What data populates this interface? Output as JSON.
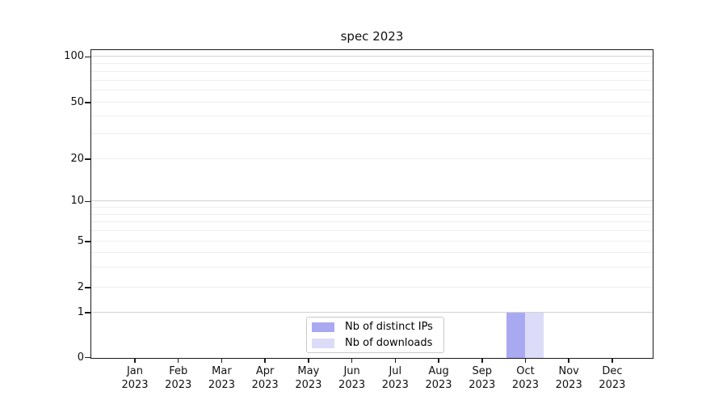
{
  "chart_data": {
    "type": "bar",
    "title": "spec 2023",
    "categories": [
      "Jan",
      "Feb",
      "Mar",
      "Apr",
      "May",
      "Jun",
      "Jul",
      "Aug",
      "Sep",
      "Oct",
      "Nov",
      "Dec"
    ],
    "category_year": "2023",
    "series": [
      {
        "name": "Nb of distinct IPs",
        "color": "#a9a9f1",
        "values": [
          0,
          0,
          0,
          0,
          0,
          0,
          0,
          0,
          0,
          1,
          0,
          0
        ]
      },
      {
        "name": "Nb of downloads",
        "color": "#dcdcf8",
        "values": [
          0,
          0,
          0,
          0,
          0,
          0,
          0,
          0,
          0,
          1,
          0,
          0
        ]
      }
    ],
    "yscale": "symlog",
    "yticks": [
      0,
      1,
      2,
      5,
      10,
      20,
      50,
      100
    ],
    "ytick_labels": [
      "0",
      "1",
      "2",
      "5",
      "10",
      "20",
      "50",
      "100"
    ],
    "y_major_gridlines": [
      1,
      10,
      100
    ],
    "y_minor_gridlines": [
      2,
      3,
      4,
      5,
      6,
      7,
      8,
      9,
      20,
      30,
      40,
      50,
      60,
      70,
      80,
      90
    ],
    "ylim": [
      0,
      100
    ],
    "grid": "horizontal",
    "legend_position": "lower center",
    "colors": {
      "distinct_ips": "#a9a9f1",
      "downloads": "#dcdcf8",
      "major_grid": "#d3d3d3",
      "minor_grid": "#efefef",
      "spine": "#1a1a1a"
    }
  }
}
